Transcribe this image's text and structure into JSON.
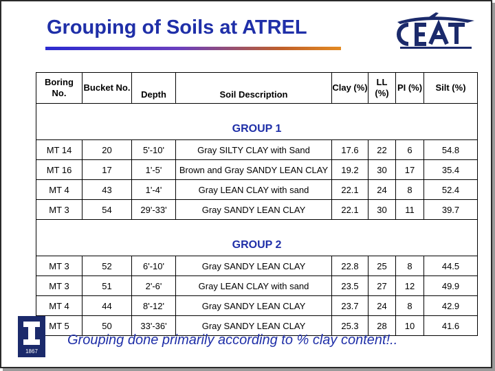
{
  "slide": {
    "title": "Grouping of Soils at ATREL",
    "footer_note": "Grouping done primarily according to % clay content!..",
    "title_color": "#1f2fa8",
    "rule_colors": [
      "#2b2bd0",
      "#e38a22"
    ]
  },
  "logo": {
    "name": "CEAT",
    "icon": "airplane-logo-icon",
    "university_icon": "block-i-logo-icon",
    "university_year": "1867"
  },
  "table": {
    "headers": {
      "boring": "Boring No.",
      "bucket": "Bucket No.",
      "depth": "Depth",
      "description": "Soil Description",
      "clay": "Clay (%)",
      "ll": "LL (%)",
      "pi": "PI (%)",
      "silt": "Silt (%)"
    },
    "groups": [
      {
        "label": "GROUP 1",
        "rows": [
          {
            "boring": "MT 14",
            "bucket": "20",
            "depth": "5'-10'",
            "description": "Gray SILTY CLAY with Sand",
            "clay": "17.6",
            "ll": "22",
            "pi": "6",
            "silt": "54.8"
          },
          {
            "boring": "MT 16",
            "bucket": "17",
            "depth": "1'-5'",
            "description": "Brown and Gray SANDY LEAN CLAY",
            "clay": "19.2",
            "ll": "30",
            "pi": "17",
            "silt": "35.4"
          },
          {
            "boring": "MT 4",
            "bucket": "43",
            "depth": "1'-4'",
            "description": "Gray LEAN CLAY with sand",
            "clay": "22.1",
            "ll": "24",
            "pi": "8",
            "silt": "52.4"
          },
          {
            "boring": "MT 3",
            "bucket": "54",
            "depth": "29'-33'",
            "description": "Gray SANDY LEAN CLAY",
            "clay": "22.1",
            "ll": "30",
            "pi": "11",
            "silt": "39.7"
          }
        ]
      },
      {
        "label": "GROUP 2",
        "rows": [
          {
            "boring": "MT 3",
            "bucket": "52",
            "depth": "6'-10'",
            "description": "Gray SANDY LEAN CLAY",
            "clay": "22.8",
            "ll": "25",
            "pi": "8",
            "silt": "44.5"
          },
          {
            "boring": "MT 3",
            "bucket": "51",
            "depth": "2'-6'",
            "description": "Gray LEAN CLAY with sand",
            "clay": "23.5",
            "ll": "27",
            "pi": "12",
            "silt": "49.9"
          },
          {
            "boring": "MT 4",
            "bucket": "44",
            "depth": "8'-12'",
            "description": "Gray SANDY LEAN CLAY",
            "clay": "23.7",
            "ll": "24",
            "pi": "8",
            "silt": "42.9"
          },
          {
            "boring": "MT 5",
            "bucket": "50",
            "depth": "33'-36'",
            "description": "Gray SANDY LEAN CLAY",
            "clay": "25.3",
            "ll": "28",
            "pi": "10",
            "silt": "41.6"
          }
        ]
      }
    ]
  }
}
